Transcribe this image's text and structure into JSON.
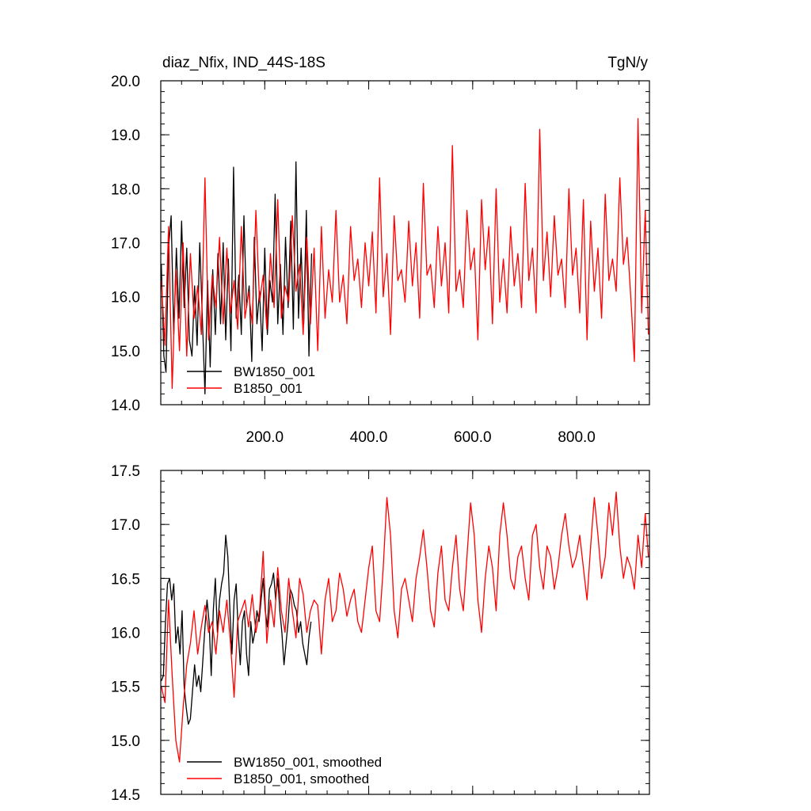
{
  "chart_data": [
    {
      "type": "line",
      "title": "diaz_Nfix, IND_44S-18S",
      "units": "TgN/y",
      "xlim": [
        0,
        940
      ],
      "ylim": [
        14.0,
        20.0
      ],
      "xticks": [
        200,
        400,
        600,
        800
      ],
      "xtick_labels": [
        "200.0",
        "400.0",
        "600.0",
        "800.0"
      ],
      "yticks": [
        14,
        15,
        16,
        17,
        18,
        19,
        20
      ],
      "ytick_labels": [
        "14.0",
        "15.0",
        "16.0",
        "17.0",
        "18.0",
        "19.0",
        "20.0"
      ],
      "legend_position": "bottom-left",
      "series": [
        {
          "name": "BW1850_001",
          "color": "#000000",
          "x": [
            1,
            6,
            10,
            15,
            20,
            25,
            30,
            35,
            40,
            45,
            50,
            55,
            60,
            65,
            70,
            75,
            80,
            85,
            90,
            95,
            100,
            105,
            110,
            115,
            120,
            125,
            130,
            135,
            140,
            145,
            150,
            155,
            160,
            165,
            170,
            175,
            180,
            185,
            190,
            195,
            200,
            205,
            210,
            215,
            220,
            225,
            230,
            235,
            240,
            245,
            250,
            255,
            260,
            265,
            270,
            275,
            280,
            285,
            290
          ],
          "values": [
            16.6,
            14.9,
            14.6,
            16.9,
            17.5,
            15.3,
            16.9,
            15.6,
            17.4,
            15.8,
            16.9,
            15.2,
            14.9,
            16.2,
            15.1,
            17.0,
            15.6,
            14.2,
            16.3,
            14.7,
            16.5,
            15.3,
            16.8,
            15.5,
            17.0,
            15.2,
            16.7,
            15.0,
            18.4,
            15.6,
            16.4,
            15.3,
            17.5,
            15.8,
            16.2,
            14.8,
            17.1,
            15.5,
            16.1,
            15.0,
            16.9,
            15.3,
            16.3,
            15.9,
            17.9,
            15.5,
            16.6,
            15.3,
            17.1,
            15.8,
            17.4,
            15.4,
            18.5,
            15.6,
            16.9,
            15.5,
            17.6,
            14.9,
            16.8
          ]
        },
        {
          "name": "B1850_001",
          "color": "#ff0000",
          "x": [
            1,
            8,
            15,
            22,
            29,
            36,
            43,
            50,
            57,
            64,
            71,
            78,
            85,
            92,
            99,
            106,
            113,
            120,
            127,
            134,
            141,
            148,
            155,
            162,
            169,
            176,
            183,
            190,
            197,
            204,
            211,
            218,
            225,
            232,
            239,
            246,
            253,
            260,
            267,
            274,
            281,
            288,
            295,
            302,
            309,
            316,
            323,
            330,
            337,
            344,
            351,
            358,
            365,
            372,
            379,
            386,
            393,
            400,
            407,
            414,
            421,
            428,
            435,
            442,
            449,
            456,
            463,
            470,
            477,
            484,
            491,
            498,
            505,
            512,
            519,
            526,
            533,
            540,
            547,
            554,
            561,
            568,
            575,
            582,
            589,
            596,
            603,
            610,
            617,
            624,
            631,
            638,
            645,
            652,
            659,
            666,
            673,
            680,
            687,
            694,
            701,
            708,
            715,
            722,
            729,
            736,
            743,
            750,
            757,
            764,
            771,
            778,
            785,
            792,
            799,
            806,
            813,
            820,
            827,
            834,
            841,
            848,
            855,
            862,
            869,
            876,
            883,
            890,
            897,
            904,
            911,
            918,
            925,
            932,
            938
          ],
          "values": [
            16.3,
            15.1,
            17.3,
            14.3,
            16.5,
            15.0,
            17.0,
            14.9,
            16.8,
            15.6,
            16.2,
            15.3,
            18.2,
            15.2,
            16.4,
            15.8,
            17.1,
            15.5,
            16.9,
            15.7,
            16.3,
            15.4,
            17.3,
            15.6,
            16.1,
            15.5,
            17.6,
            15.9,
            16.4,
            15.4,
            16.8,
            15.8,
            17.8,
            15.6,
            16.2,
            15.9,
            17.5,
            16.1,
            16.6,
            15.3,
            17.1,
            15.5,
            16.9,
            15.0,
            17.3,
            15.6,
            16.5,
            15.9,
            17.6,
            15.9,
            16.4,
            15.5,
            17.3,
            16.3,
            16.7,
            15.8,
            17.0,
            16.2,
            17.2,
            15.7,
            18.2,
            16.0,
            16.8,
            15.3,
            17.5,
            16.3,
            16.5,
            15.9,
            17.4,
            16.2,
            17.0,
            15.6,
            18.1,
            16.4,
            16.6,
            15.8,
            17.3,
            16.2,
            17.0,
            15.7,
            18.8,
            16.1,
            16.5,
            15.8,
            17.6,
            16.5,
            16.9,
            15.2,
            17.8,
            16.5,
            17.3,
            15.5,
            18.0,
            15.9,
            16.7,
            15.7,
            17.3,
            16.2,
            16.8,
            15.8,
            18.1,
            16.3,
            16.9,
            15.7,
            19.1,
            16.3,
            17.2,
            16.0,
            17.5,
            16.4,
            16.7,
            15.8,
            18.0,
            16.4,
            16.9,
            15.7,
            17.8,
            15.2,
            17.4,
            16.1,
            16.9,
            15.6,
            17.9,
            16.3,
            16.7,
            16.1,
            18.2,
            16.6,
            17.1,
            16.0,
            14.8,
            19.3,
            15.7,
            17.6,
            15.3
          ]
        }
      ]
    },
    {
      "type": "line",
      "xlim": [
        0,
        940
      ],
      "ylim": [
        14.5,
        17.5
      ],
      "yticks": [
        14.5,
        15.0,
        15.5,
        16.0,
        16.5,
        17.0,
        17.5
      ],
      "ytick_labels": [
        "14.5",
        "15.0",
        "15.5",
        "16.0",
        "16.5",
        "17.0",
        "17.5"
      ],
      "legend_position": "bottom-left",
      "series": [
        {
          "name": "BW1850_001, smoothed",
          "color": "#000000",
          "x": [
            1,
            5,
            9,
            13,
            17,
            21,
            25,
            29,
            33,
            37,
            41,
            45,
            49,
            53,
            57,
            61,
            65,
            69,
            73,
            77,
            81,
            85,
            89,
            93,
            97,
            101,
            105,
            109,
            113,
            117,
            121,
            125,
            129,
            133,
            137,
            141,
            145,
            149,
            153,
            157,
            161,
            165,
            169,
            173,
            177,
            181,
            185,
            189,
            193,
            197,
            201,
            205,
            209,
            213,
            217,
            221,
            225,
            229,
            233,
            237,
            241,
            245,
            249,
            253,
            257,
            261,
            265,
            269,
            273,
            277,
            281,
            285,
            289
          ],
          "values": [
            15.55,
            15.6,
            16.1,
            16.45,
            16.5,
            16.3,
            16.45,
            15.9,
            16.05,
            15.8,
            16.2,
            15.5,
            15.3,
            15.15,
            15.2,
            15.45,
            15.7,
            15.5,
            15.6,
            15.45,
            15.75,
            16.05,
            16.3,
            16.1,
            15.6,
            16.2,
            16.5,
            16.0,
            16.3,
            16.45,
            16.55,
            16.9,
            16.7,
            16.2,
            15.8,
            16.3,
            16.45,
            16.0,
            15.7,
            16.1,
            16.2,
            15.8,
            15.6,
            16.1,
            15.9,
            16.0,
            16.2,
            16.1,
            16.3,
            16.5,
            16.2,
            16.05,
            16.4,
            16.45,
            16.55,
            16.3,
            16.5,
            16.2,
            16.0,
            15.7,
            15.9,
            16.1,
            16.4,
            16.35,
            16.25,
            16.2,
            16.0,
            16.1,
            15.9,
            15.8,
            15.7,
            15.95,
            16.1
          ]
        },
        {
          "name": "B1850_001, smoothed",
          "color": "#ff0000",
          "x": [
            1,
            8,
            15,
            22,
            29,
            36,
            43,
            50,
            57,
            64,
            71,
            78,
            85,
            92,
            99,
            106,
            113,
            120,
            127,
            134,
            141,
            148,
            155,
            162,
            169,
            176,
            183,
            190,
            197,
            204,
            211,
            218,
            225,
            232,
            239,
            246,
            253,
            260,
            267,
            274,
            281,
            288,
            295,
            302,
            309,
            316,
            323,
            330,
            337,
            344,
            351,
            358,
            365,
            372,
            379,
            386,
            393,
            400,
            407,
            414,
            421,
            428,
            435,
            442,
            449,
            456,
            463,
            470,
            477,
            484,
            491,
            498,
            505,
            512,
            519,
            526,
            533,
            540,
            547,
            554,
            561,
            568,
            575,
            582,
            589,
            596,
            603,
            610,
            617,
            624,
            631,
            638,
            645,
            652,
            659,
            666,
            673,
            680,
            687,
            694,
            701,
            708,
            715,
            722,
            729,
            736,
            743,
            750,
            757,
            764,
            771,
            778,
            785,
            792,
            799,
            806,
            813,
            820,
            827,
            834,
            841,
            848,
            855,
            862,
            869,
            876,
            883,
            890,
            897,
            904,
            911,
            918,
            925,
            932,
            938
          ],
          "values": [
            15.5,
            15.35,
            16.3,
            15.6,
            15.0,
            14.8,
            15.3,
            15.7,
            15.9,
            16.2,
            15.8,
            16.05,
            16.25,
            16.0,
            16.1,
            15.8,
            16.2,
            16.0,
            16.3,
            15.9,
            15.4,
            16.1,
            16.2,
            16.3,
            16.05,
            16.35,
            16.0,
            16.2,
            16.75,
            15.9,
            16.3,
            16.05,
            16.6,
            16.2,
            16.0,
            16.5,
            16.2,
            15.95,
            16.5,
            16.35,
            16.0,
            16.2,
            16.3,
            16.25,
            15.8,
            16.3,
            16.5,
            16.1,
            16.2,
            16.55,
            16.4,
            16.15,
            16.3,
            16.4,
            16.1,
            16.0,
            16.3,
            16.6,
            16.8,
            16.2,
            16.1,
            16.6,
            17.25,
            16.9,
            16.2,
            15.95,
            16.4,
            16.5,
            16.3,
            16.1,
            16.5,
            16.7,
            16.95,
            16.6,
            16.2,
            16.05,
            16.55,
            16.8,
            16.3,
            16.2,
            16.6,
            16.9,
            16.4,
            16.2,
            16.7,
            17.2,
            16.9,
            16.3,
            16.0,
            16.5,
            16.8,
            16.6,
            16.2,
            16.9,
            17.2,
            16.9,
            16.5,
            16.4,
            16.7,
            16.8,
            16.5,
            16.3,
            16.9,
            17.0,
            16.6,
            16.4,
            16.8,
            16.7,
            16.4,
            16.6,
            16.9,
            17.1,
            16.8,
            16.6,
            16.7,
            16.9,
            16.6,
            16.3,
            16.8,
            17.25,
            16.9,
            16.5,
            16.7,
            17.2,
            16.9,
            17.3,
            16.8,
            16.5,
            16.7,
            16.6,
            16.4,
            16.9,
            16.6,
            17.1,
            16.7
          ]
        }
      ]
    }
  ]
}
